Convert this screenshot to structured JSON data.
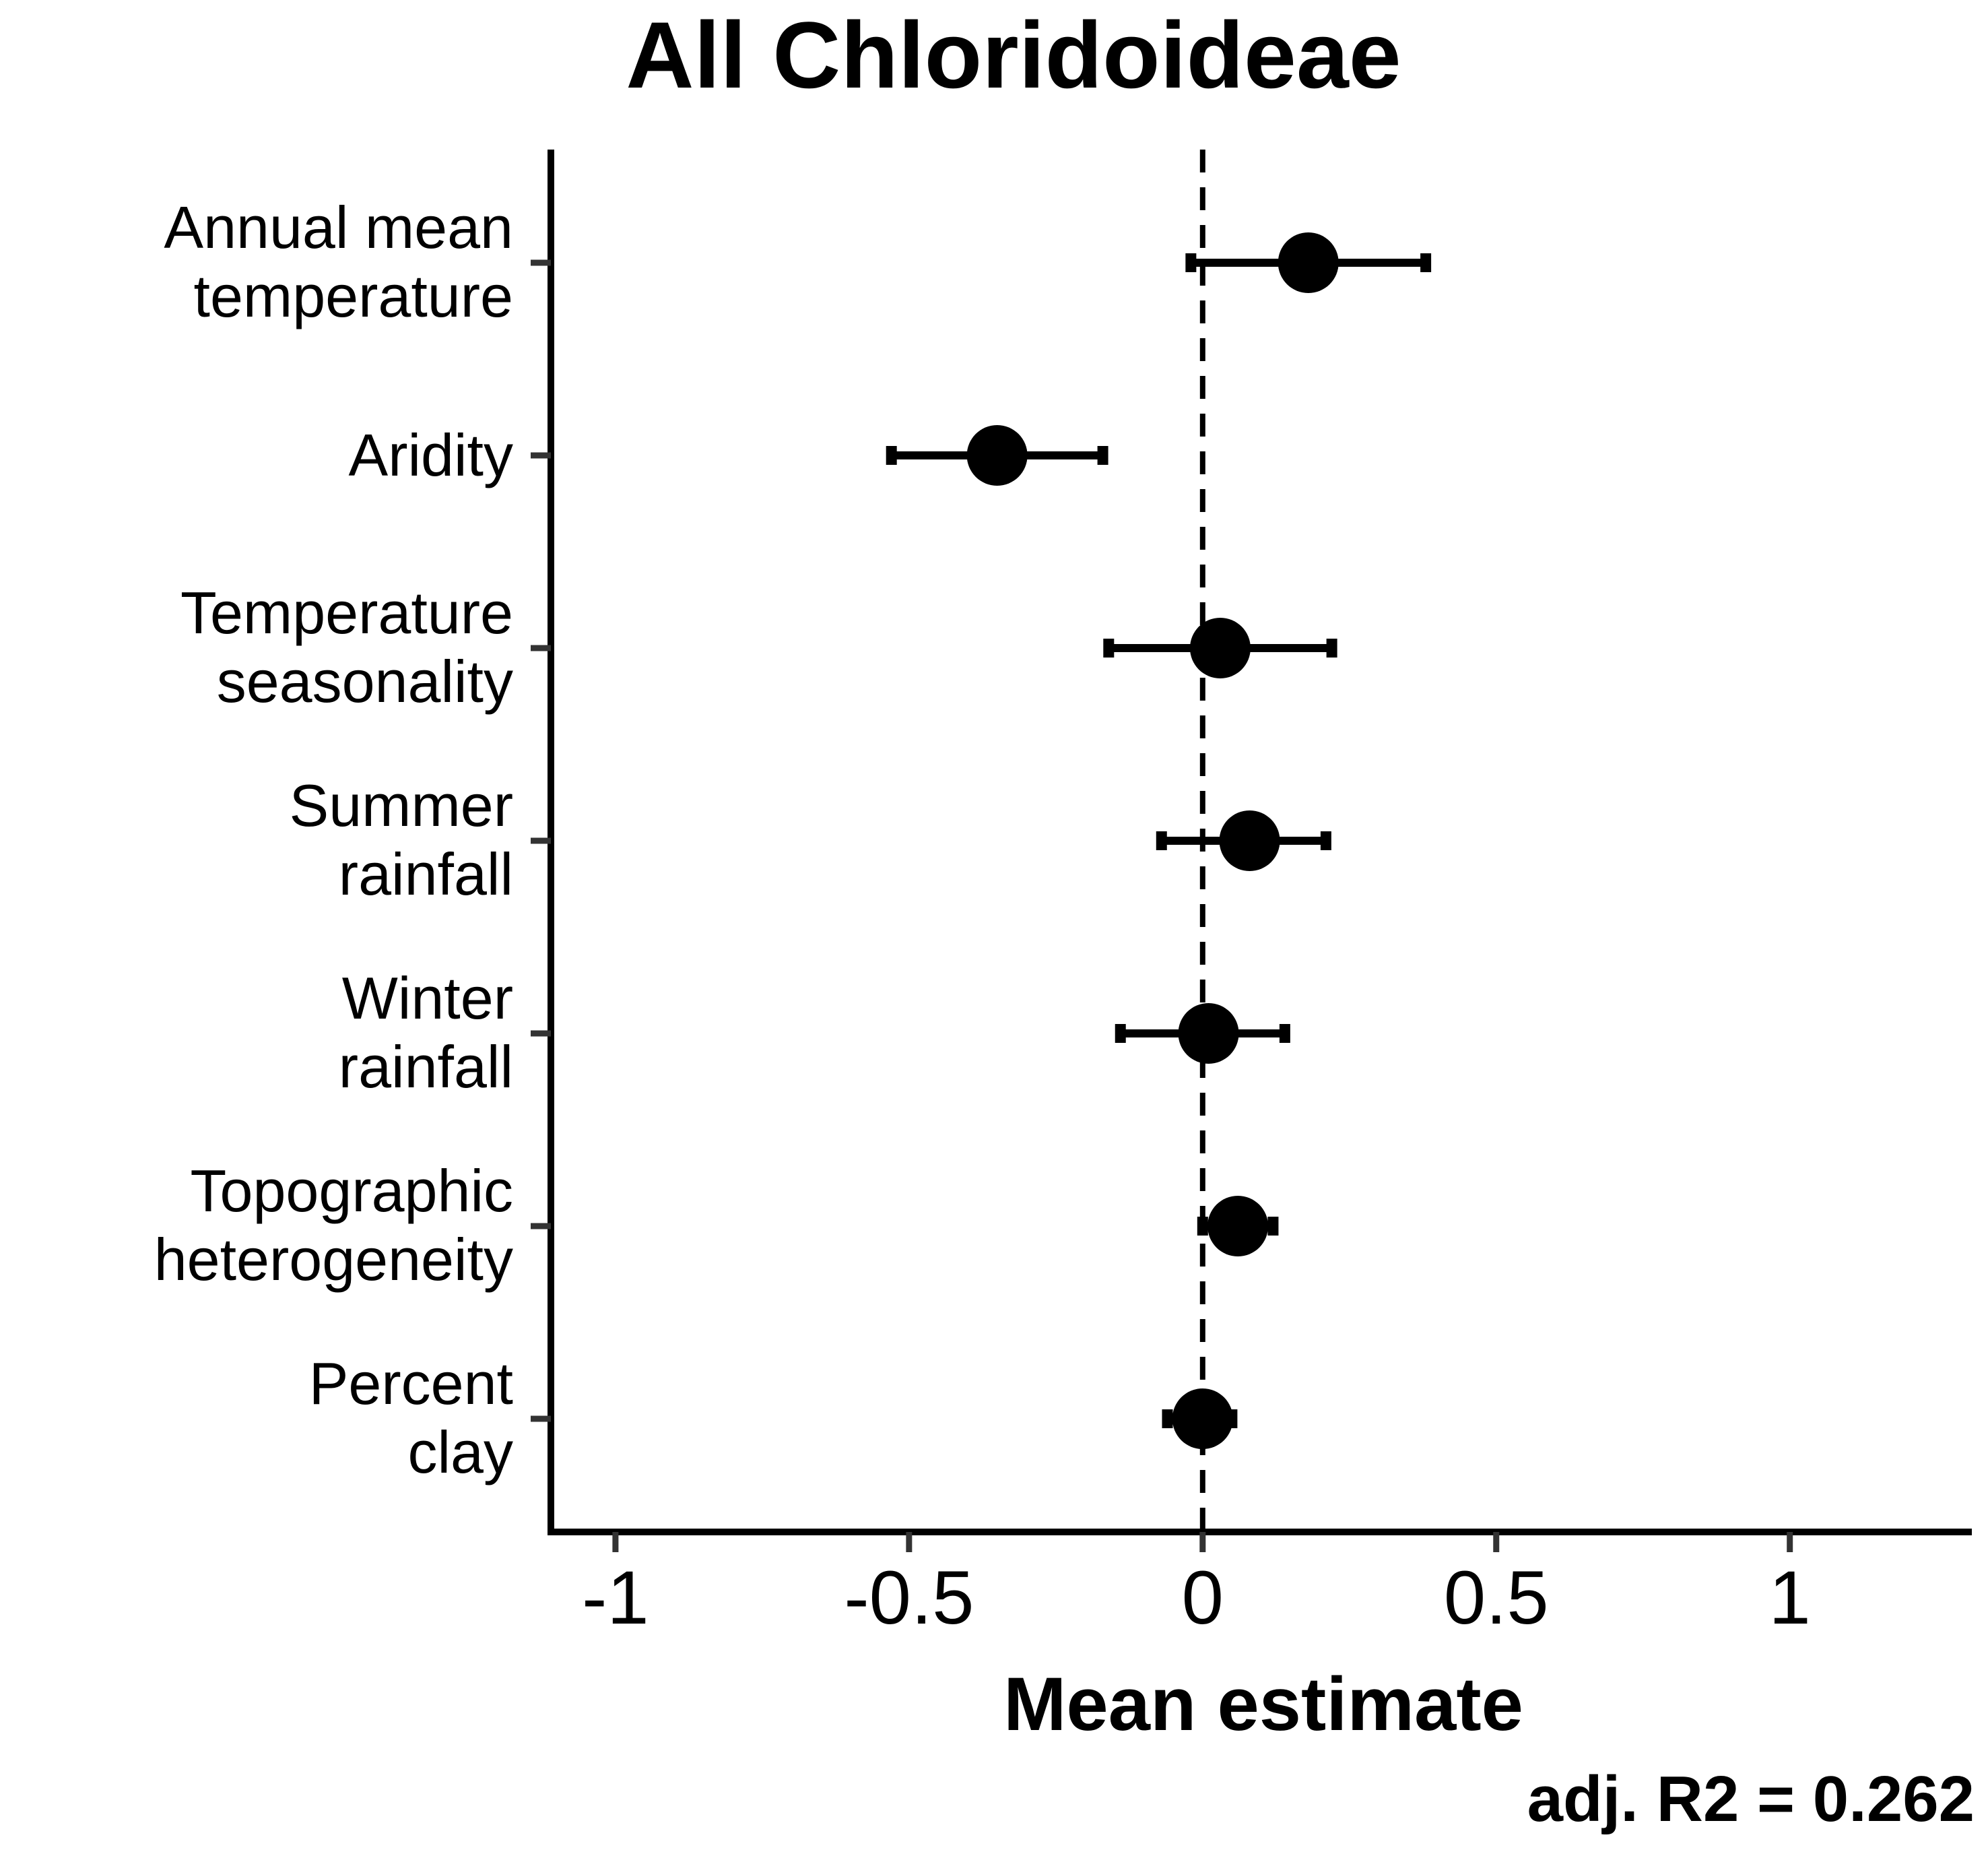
{
  "chart_data": {
    "type": "scatter",
    "title": "All Chloridoideae",
    "xlabel": "Mean estimate",
    "ylabel": "",
    "xlim": [
      -1.11,
      1.31
    ],
    "xticks": [
      -1,
      -0.5,
      0,
      0.5,
      1
    ],
    "xtick_labels": [
      "-1",
      "-0.5",
      "0",
      "0.5",
      "1"
    ],
    "reference_line_x": 0,
    "annotation": "adj. R2 = 0.262",
    "categories": [
      [
        "Annual mean",
        "temperature"
      ],
      [
        "Aridity"
      ],
      [
        "Temperature",
        "seasonality"
      ],
      [
        "Summer",
        "rainfall"
      ],
      [
        "Winter",
        "rainfall"
      ],
      [
        "Topographic",
        "heterogeneity"
      ],
      [
        "Percent",
        "clay"
      ]
    ],
    "series": [
      {
        "estimate": [
          0.18,
          -0.35,
          0.03,
          0.08,
          0.01,
          0.06,
          0.0
        ],
        "lower": [
          -0.02,
          -0.53,
          -0.16,
          -0.07,
          -0.14,
          0.0,
          -0.06
        ],
        "upper": [
          0.38,
          -0.17,
          0.22,
          0.21,
          0.14,
          0.12,
          0.05
        ]
      }
    ],
    "grid": false,
    "legend": "none",
    "color": "#000000"
  }
}
